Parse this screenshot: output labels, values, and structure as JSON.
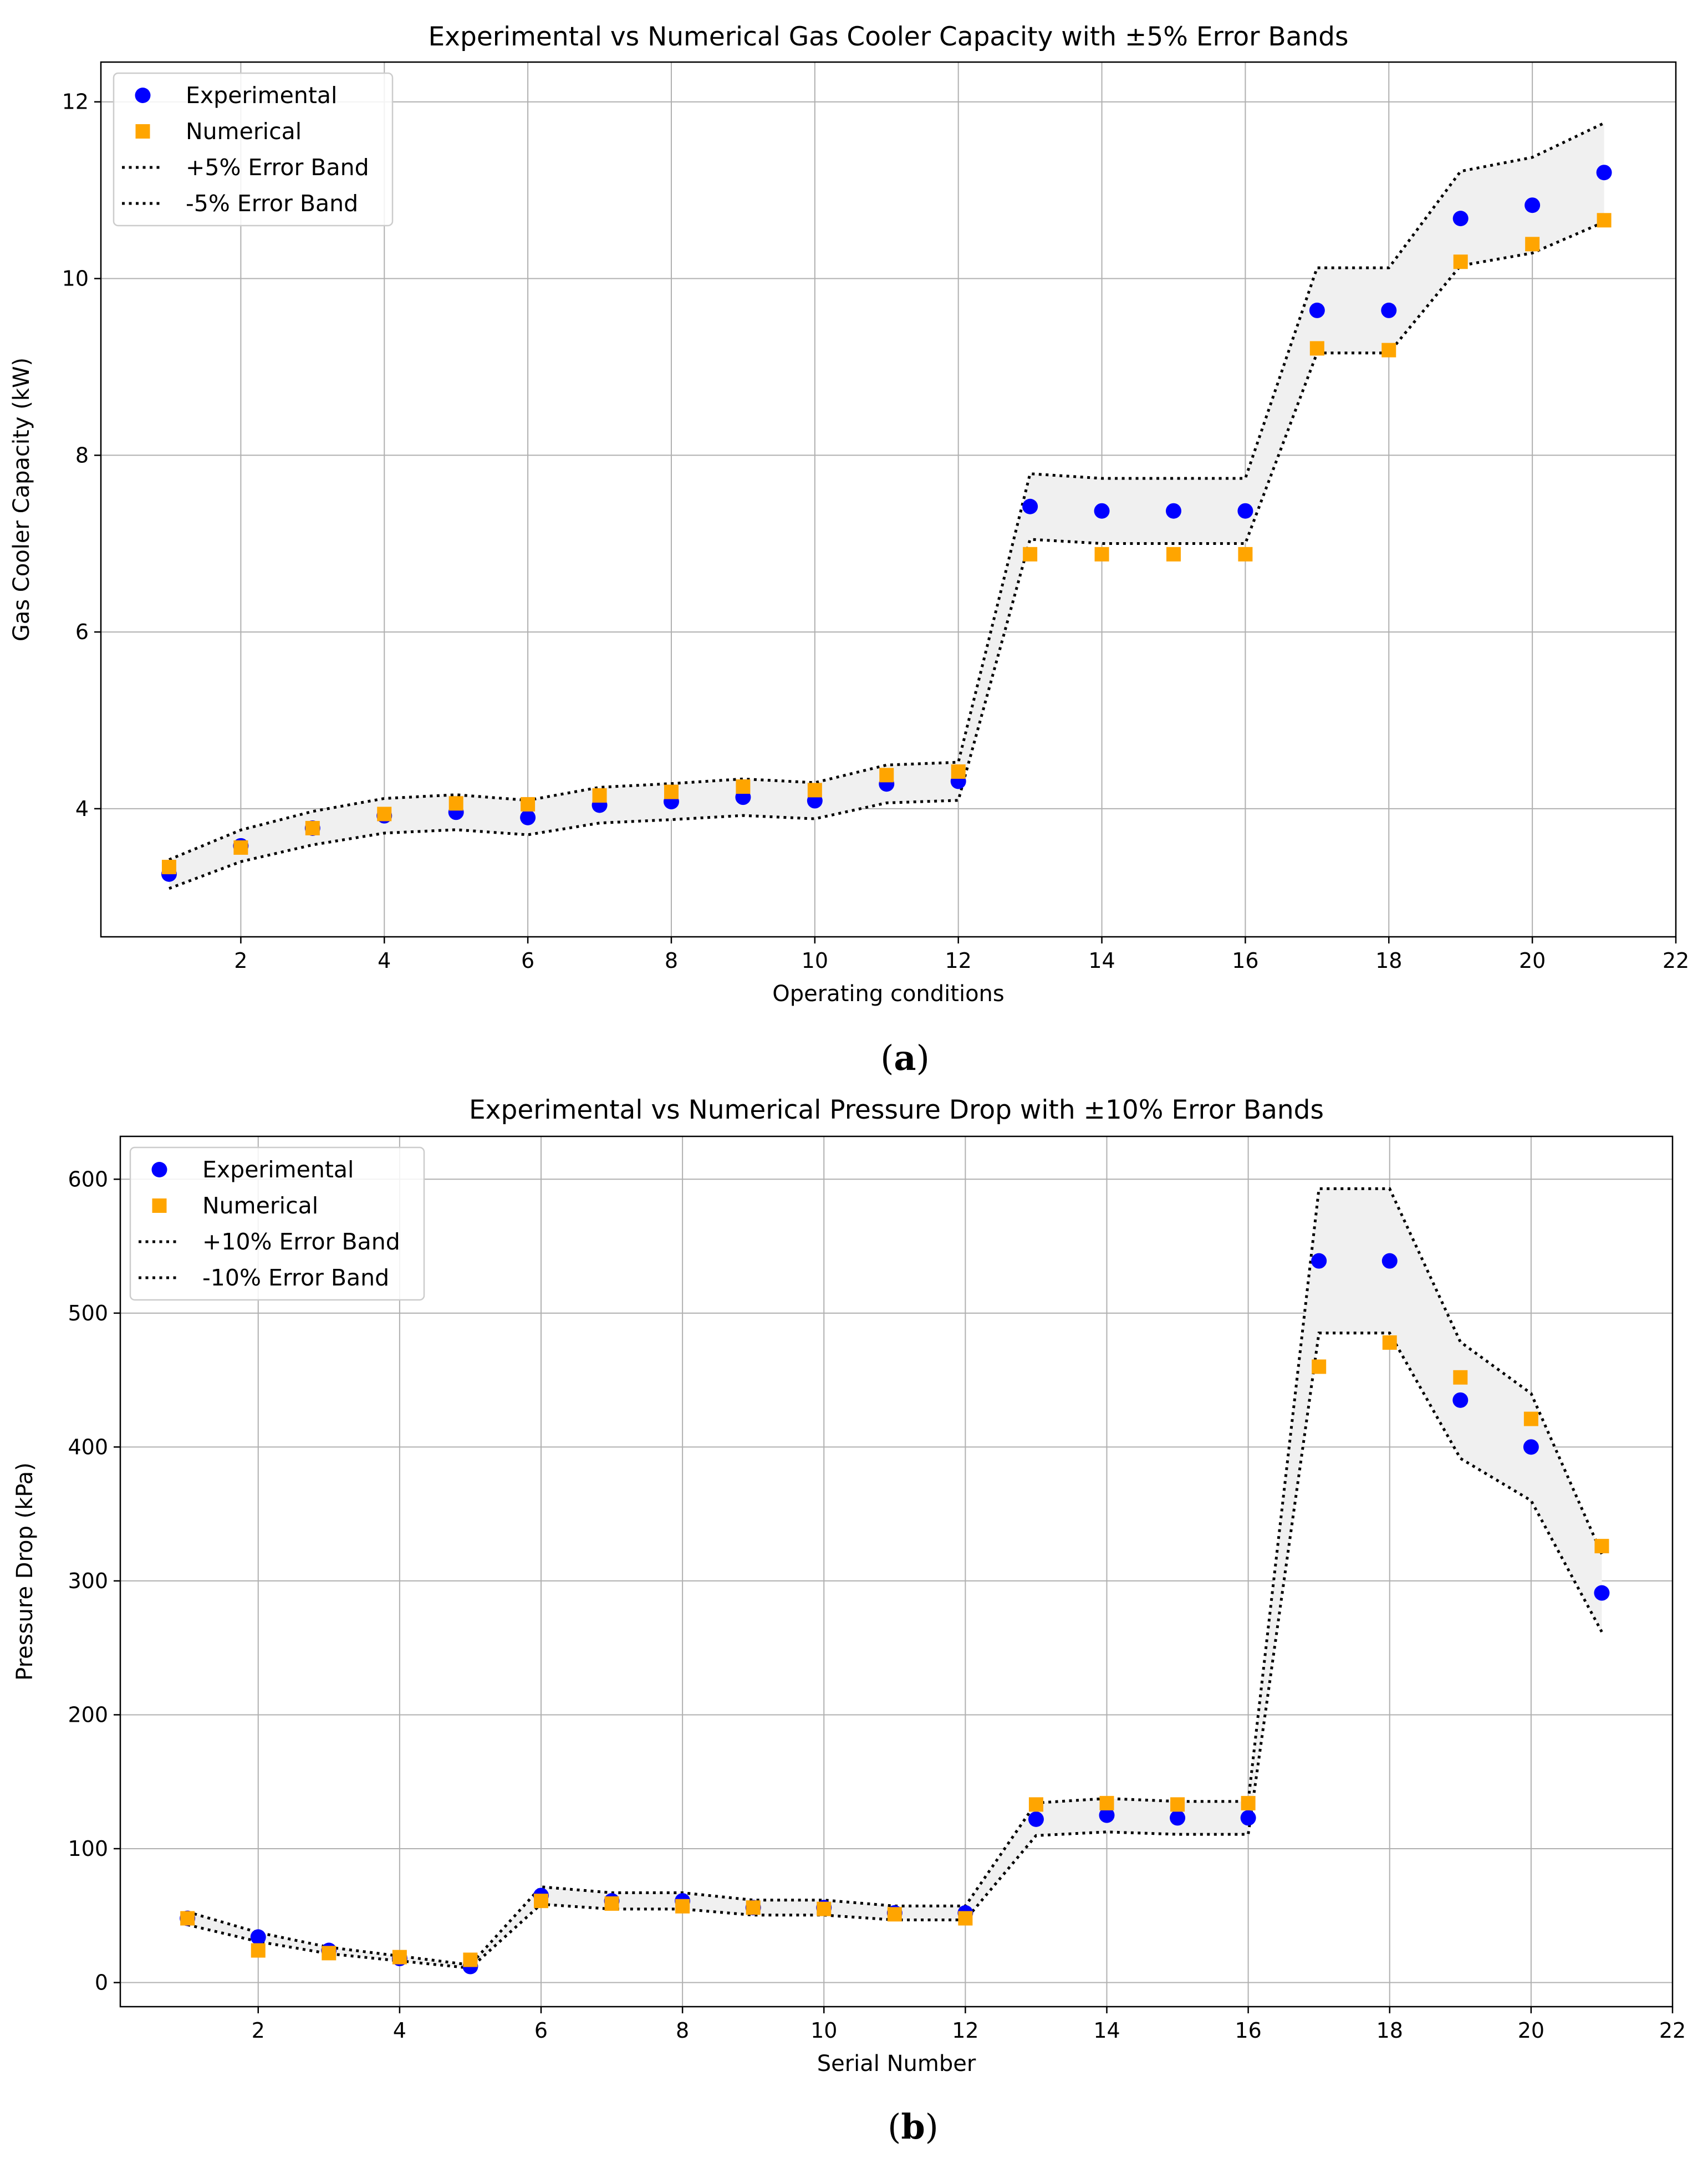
{
  "chart_data": [
    {
      "type": "scatter",
      "panel_label": "a",
      "title": "Experimental vs Numerical Gas Cooler Capacity with ±5% Error Bands",
      "xlabel": "Operating conditions",
      "ylabel": "Gas Cooler Capacity (kW)",
      "xlim": [
        0.05,
        22
      ],
      "ylim": [
        2.55,
        12.45
      ],
      "xticks": [
        2,
        4,
        6,
        8,
        10,
        12,
        14,
        16,
        18,
        20,
        22
      ],
      "yticks": [
        4,
        6,
        8,
        10,
        12
      ],
      "grid": true,
      "legend_position": "upper-left",
      "x": [
        1,
        2,
        3,
        4,
        5,
        6,
        7,
        8,
        9,
        10,
        11,
        12,
        13,
        14,
        15,
        16,
        17,
        18,
        19,
        20,
        21
      ],
      "series": [
        {
          "name": "Experimental",
          "marker": "circle",
          "color": "#0000ff",
          "values": [
            3.26,
            3.58,
            3.78,
            3.92,
            3.96,
            3.9,
            4.04,
            4.08,
            4.13,
            4.09,
            4.28,
            4.31,
            7.42,
            7.37,
            7.37,
            7.37,
            9.64,
            9.64,
            10.68,
            10.83,
            11.2
          ]
        },
        {
          "name": "Numerical",
          "marker": "square",
          "color": "#ffa500",
          "values": [
            3.34,
            3.56,
            3.78,
            3.94,
            4.06,
            4.05,
            4.15,
            4.19,
            4.25,
            4.21,
            4.38,
            4.42,
            6.88,
            6.88,
            6.88,
            6.88,
            9.21,
            9.19,
            10.19,
            10.39,
            10.66
          ]
        }
      ],
      "error_bands": {
        "upper_label": "+5% Error Band",
        "lower_label": "-5% Error Band",
        "fraction": 0.05,
        "base": "Experimental",
        "fill_color": "#f0f0f0",
        "line_color": "#000000"
      }
    },
    {
      "type": "scatter",
      "panel_label": "b",
      "title": "Experimental vs Numerical Pressure Drop with ±10% Error Bands",
      "xlabel": "Serial Number",
      "ylabel": "Pressure Drop (kPa)",
      "xlim": [
        0.05,
        22
      ],
      "ylim": [
        -18,
        632
      ],
      "xticks": [
        2,
        4,
        6,
        8,
        10,
        12,
        14,
        16,
        18,
        20,
        22
      ],
      "yticks": [
        0,
        100,
        200,
        300,
        400,
        500,
        600
      ],
      "grid": true,
      "legend_position": "upper-left",
      "x": [
        1,
        2,
        3,
        4,
        5,
        6,
        7,
        8,
        9,
        10,
        11,
        12,
        13,
        14,
        15,
        16,
        17,
        18,
        19,
        20,
        21
      ],
      "series": [
        {
          "name": "Experimental",
          "marker": "circle",
          "color": "#0000ff",
          "values": [
            48,
            34,
            24,
            18,
            12,
            65,
            61,
            61,
            56,
            56,
            52,
            52,
            122,
            125,
            123,
            123,
            539,
            539,
            435,
            400,
            291
          ]
        },
        {
          "name": "Numerical",
          "marker": "square",
          "color": "#ffa500",
          "values": [
            48,
            24,
            22,
            19,
            17,
            61,
            59,
            57,
            56,
            55,
            51,
            48,
            133,
            134,
            133,
            134,
            460,
            478,
            452,
            421,
            326
          ]
        }
      ],
      "error_bands": {
        "upper_label": "+10% Error Band",
        "lower_label": "-10% Error Band",
        "fraction": 0.1,
        "base": "Experimental",
        "fill_color": "#f0f0f0",
        "line_color": "#000000"
      }
    }
  ]
}
